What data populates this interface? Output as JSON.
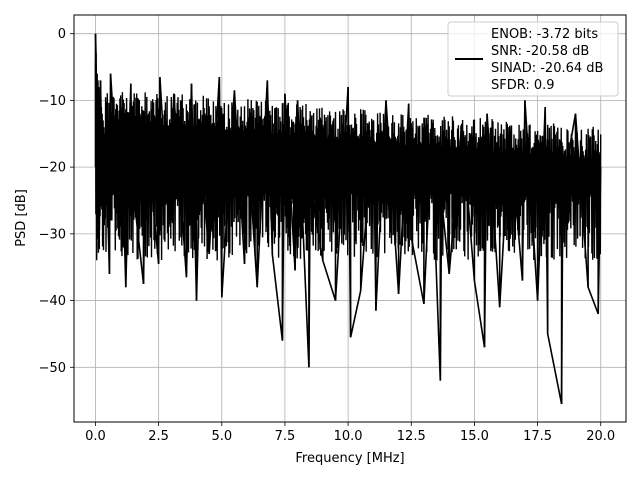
{
  "chart_data": {
    "type": "line",
    "xlabel": "Frequency [MHz]",
    "ylabel": "PSD [dB]",
    "xlim": [
      -0.85,
      21.0
    ],
    "ylim": [
      -58.2,
      2.8
    ],
    "xticks": [
      0.0,
      2.5,
      5.0,
      7.5,
      10.0,
      12.5,
      15.0,
      17.5,
      20.0
    ],
    "xtick_labels": [
      "0.0",
      "2.5",
      "5.0",
      "7.5",
      "10.0",
      "12.5",
      "15.0",
      "17.5",
      "20.0"
    ],
    "yticks": [
      0,
      -10,
      -20,
      -30,
      -40,
      -50
    ],
    "ytick_labels": [
      "0",
      "−10",
      "−20",
      "−30",
      "−40",
      "−50"
    ],
    "grid": true,
    "legend_position": "top-right",
    "series": [
      {
        "name": "ENOB: -3.72 bits\nSNR: -20.58 dB\nSINAD: -20.64 dB\nSFDR: 0.9",
        "legend_lines": [
          "ENOB: -3.72 bits",
          "SNR: -20.58 dB",
          "SINAD: -20.64 dB",
          "SFDR: 0.9"
        ],
        "color": "#000000",
        "x": [
          0.0,
          0.02,
          0.05,
          0.1,
          0.15,
          0.2,
          0.3,
          0.45,
          0.55,
          0.6,
          0.9,
          1.0,
          1.2,
          1.4,
          1.45,
          1.9,
          2.0,
          2.5,
          2.55,
          2.9,
          3.1,
          3.6,
          3.8,
          4.0,
          4.15,
          4.5,
          4.9,
          5.0,
          5.5,
          5.9,
          6.0,
          6.4,
          6.8,
          7.0,
          7.4,
          7.5,
          7.9,
          8.0,
          8.45,
          8.5,
          9.0,
          9.5,
          10.0,
          10.1,
          10.5,
          11.0,
          11.1,
          11.5,
          12.0,
          12.4,
          12.5,
          13.0,
          13.3,
          13.65,
          13.7,
          14.0,
          14.5,
          15.0,
          15.4,
          15.5,
          16.0,
          16.4,
          16.9,
          17.0,
          17.5,
          17.8,
          17.9,
          18.45,
          18.5,
          19.0,
          19.5,
          19.9,
          20.0
        ],
        "y": [
          0.0,
          -3.0,
          -18.0,
          -8.0,
          -29.5,
          -7.0,
          -28.5,
          -20.5,
          -36.0,
          -6.0,
          -25.0,
          -11.0,
          -38.0,
          -7.5,
          -22.0,
          -37.5,
          -14.0,
          -34.5,
          -6.5,
          -28.5,
          -9.0,
          -36.5,
          -7.5,
          -40.0,
          -18.0,
          -33.0,
          -6.5,
          -39.5,
          -8.5,
          -34.5,
          -15.0,
          -38.0,
          -7.0,
          -33.0,
          -46.0,
          -9.0,
          -35.5,
          -10.0,
          -50.0,
          -22.0,
          -34.0,
          -40.0,
          -8.0,
          -45.5,
          -38.5,
          -13.0,
          -41.5,
          -10.0,
          -39.0,
          -10.5,
          -30.5,
          -40.5,
          -16.0,
          -52.0,
          -25.0,
          -36.0,
          -13.5,
          -37.0,
          -47.0,
          -12.0,
          -41.0,
          -14.0,
          -37.0,
          -10.0,
          -40.0,
          -11.0,
          -45.0,
          -55.5,
          -23.0,
          -12.0,
          -38.0,
          -42.0,
          -20.0
        ]
      }
    ]
  }
}
